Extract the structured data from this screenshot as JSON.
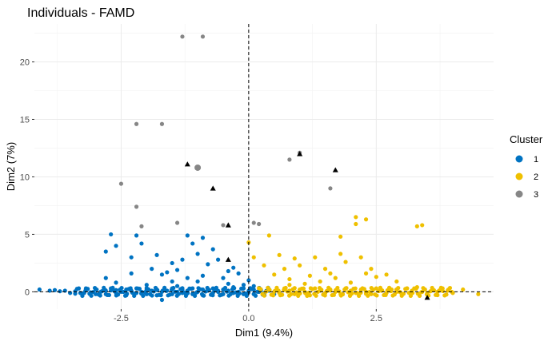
{
  "chart_data": {
    "type": "scatter",
    "title": "Individuals - FAMD",
    "xlabel": "Dim1 (9.4%)",
    "ylabel": "Dim2 (7%)",
    "xlim": [
      -4.2,
      4.8
    ],
    "ylim": [
      -1.5,
      23.3
    ],
    "x_ticks": [
      -2.5,
      0.0,
      2.5
    ],
    "x_tick_labels": [
      "-2.5",
      "0.0",
      "2.5"
    ],
    "y_ticks": [
      0,
      5,
      10,
      15,
      20
    ],
    "y_tick_labels": [
      "0",
      "5",
      "10",
      "15",
      "20"
    ],
    "grid": true,
    "reference_lines": {
      "x": 0,
      "y": 0,
      "style": "dashed"
    },
    "legend": {
      "title": "Cluster",
      "position": "right",
      "entries": [
        {
          "label": "1",
          "color": "#0073C2"
        },
        {
          "label": "2",
          "color": "#EFC000"
        },
        {
          "label": "3",
          "color": "#868686"
        }
      ]
    },
    "series": [
      {
        "name": "1",
        "color": "#0073C2",
        "points": [
          [
            -4.1,
            0.2
          ],
          [
            -3.9,
            0.1
          ],
          [
            -3.8,
            0.15
          ],
          [
            -3.7,
            0.05
          ],
          [
            -3.6,
            0.1
          ],
          [
            -3.5,
            -0.1
          ],
          [
            -3.4,
            0.05
          ],
          [
            -3.3,
            -0.1
          ],
          [
            -3.2,
            0.1
          ],
          [
            -3.1,
            -0.05
          ],
          [
            -3.0,
            0.2
          ],
          [
            -3.0,
            -0.2
          ],
          [
            -2.9,
            0.0
          ],
          [
            -2.8,
            0.1
          ],
          [
            -2.8,
            -0.2
          ],
          [
            -2.7,
            0.3
          ],
          [
            -2.6,
            -0.1
          ],
          [
            -2.6,
            0.15
          ],
          [
            -2.5,
            0.0
          ],
          [
            -2.4,
            -0.3
          ],
          [
            -2.4,
            0.2
          ],
          [
            -2.3,
            0.1
          ],
          [
            -2.2,
            -0.1
          ],
          [
            -2.2,
            0.3
          ],
          [
            -2.1,
            0.0
          ],
          [
            -2.0,
            -0.2
          ],
          [
            -2.0,
            0.2
          ],
          [
            -1.9,
            0.1
          ],
          [
            -1.8,
            -0.3
          ],
          [
            -1.8,
            0.2
          ],
          [
            -1.7,
            0.0
          ],
          [
            -1.7,
            -0.7
          ],
          [
            -1.6,
            0.1
          ],
          [
            -1.5,
            -0.2
          ],
          [
            -1.5,
            0.3
          ],
          [
            -1.4,
            0.0
          ],
          [
            -1.3,
            -0.1
          ],
          [
            -1.3,
            0.2
          ],
          [
            -1.2,
            0.1
          ],
          [
            -1.1,
            -0.2
          ],
          [
            -1.1,
            0.3
          ],
          [
            -1.0,
            0.0
          ],
          [
            -0.9,
            -0.3
          ],
          [
            -0.9,
            0.2
          ],
          [
            -0.8,
            0.1
          ],
          [
            -0.7,
            -0.1
          ],
          [
            -0.7,
            0.3
          ],
          [
            -0.6,
            0.0
          ],
          [
            -0.5,
            -0.2
          ],
          [
            -0.5,
            0.2
          ],
          [
            -0.4,
            0.1
          ],
          [
            -0.3,
            -0.1
          ],
          [
            -0.3,
            0.4
          ],
          [
            -0.2,
            0.0
          ],
          [
            -0.1,
            -0.2
          ],
          [
            -0.1,
            0.3
          ],
          [
            0.0,
            0.1
          ],
          [
            0.1,
            -0.2
          ],
          [
            0.1,
            0.2
          ],
          [
            0.2,
            0.0
          ],
          [
            0.3,
            -0.1
          ],
          [
            0.4,
            0.1
          ],
          [
            0.5,
            -0.2
          ],
          [
            -2.8,
            3.5
          ],
          [
            -2.7,
            5.0
          ],
          [
            -2.6,
            4.0
          ],
          [
            -2.3,
            3.0
          ],
          [
            -2.2,
            4.9
          ],
          [
            -2.1,
            4.2
          ],
          [
            -1.9,
            2.0
          ],
          [
            -1.8,
            3.2
          ],
          [
            -1.7,
            1.5
          ],
          [
            -1.6,
            1.7
          ],
          [
            -1.5,
            2.5
          ],
          [
            -1.4,
            1.9
          ],
          [
            -1.3,
            2.8
          ],
          [
            -1.2,
            4.9
          ],
          [
            -1.1,
            4.2
          ],
          [
            -1.0,
            3.3
          ],
          [
            -0.9,
            4.7
          ],
          [
            -0.8,
            2.4
          ],
          [
            -0.7,
            3.7
          ],
          [
            -0.6,
            2.8
          ],
          [
            -0.5,
            1.2
          ],
          [
            -0.4,
            1.8
          ],
          [
            -0.3,
            2.1
          ],
          [
            -0.2,
            1.6
          ],
          [
            -0.1,
            0.6
          ],
          [
            0.0,
            1.0
          ],
          [
            0.1,
            0.5
          ],
          [
            -1.5,
            0.9
          ],
          [
            -1.2,
            1.2
          ],
          [
            -1.0,
            0.9
          ],
          [
            -2.3,
            1.6
          ],
          [
            -2.6,
            0.8
          ],
          [
            -2.0,
            0.6
          ],
          [
            -0.9,
            1.4
          ],
          [
            -1.4,
            0.5
          ],
          [
            -0.4,
            0.7
          ],
          [
            -2.8,
            1.2
          ]
        ]
      },
      {
        "name": "2",
        "color": "#EFC000",
        "points": [
          [
            0.2,
            0.1
          ],
          [
            0.3,
            -0.2
          ],
          [
            0.4,
            0.2
          ],
          [
            0.5,
            0.0
          ],
          [
            0.6,
            -0.1
          ],
          [
            0.7,
            0.3
          ],
          [
            0.8,
            0.1
          ],
          [
            0.9,
            -0.2
          ],
          [
            1.0,
            0.2
          ],
          [
            1.1,
            0.0
          ],
          [
            1.2,
            -0.3
          ],
          [
            1.3,
            0.3
          ],
          [
            1.4,
            0.1
          ],
          [
            1.5,
            -0.1
          ],
          [
            1.6,
            0.2
          ],
          [
            1.7,
            0.0
          ],
          [
            1.8,
            -0.2
          ],
          [
            1.9,
            0.3
          ],
          [
            2.0,
            0.1
          ],
          [
            2.1,
            -0.1
          ],
          [
            2.2,
            0.2
          ],
          [
            2.3,
            0.0
          ],
          [
            2.4,
            -0.2
          ],
          [
            2.5,
            0.3
          ],
          [
            2.6,
            0.1
          ],
          [
            2.7,
            -0.1
          ],
          [
            2.8,
            0.2
          ],
          [
            2.9,
            0.0
          ],
          [
            3.0,
            -0.2
          ],
          [
            3.1,
            0.3
          ],
          [
            3.2,
            0.1
          ],
          [
            3.3,
            0.4
          ],
          [
            3.4,
            0.0
          ],
          [
            3.5,
            -0.1
          ],
          [
            3.6,
            0.2
          ],
          [
            3.7,
            0.0
          ],
          [
            3.8,
            0.3
          ],
          [
            3.9,
            0.1
          ],
          [
            4.0,
            -0.1
          ],
          [
            4.2,
            0.2
          ],
          [
            4.5,
            -0.2
          ],
          [
            0.0,
            4.3
          ],
          [
            0.1,
            3.0
          ],
          [
            0.3,
            2.3
          ],
          [
            0.4,
            4.9
          ],
          [
            0.5,
            1.5
          ],
          [
            0.6,
            3.2
          ],
          [
            0.7,
            2.0
          ],
          [
            0.8,
            1.1
          ],
          [
            0.9,
            2.9
          ],
          [
            1.0,
            2.3
          ],
          [
            1.2,
            1.4
          ],
          [
            1.3,
            3.0
          ],
          [
            1.4,
            0.9
          ],
          [
            1.5,
            2.0
          ],
          [
            1.6,
            1.6
          ],
          [
            1.7,
            1.2
          ],
          [
            1.8,
            3.3
          ],
          [
            2.0,
            0.8
          ],
          [
            2.1,
            5.9
          ],
          [
            2.2,
            3.0
          ],
          [
            2.3,
            1.6
          ],
          [
            2.4,
            2.0
          ],
          [
            2.5,
            1.3
          ],
          [
            2.7,
            1.5
          ],
          [
            2.9,
            0.9
          ],
          [
            3.3,
            5.7
          ],
          [
            3.4,
            5.8
          ],
          [
            2.1,
            6.5
          ],
          [
            2.3,
            6.3
          ],
          [
            1.8,
            4.8
          ],
          [
            1.9,
            2.6
          ],
          [
            0.8,
            0.6
          ],
          [
            1.1,
            0.7
          ]
        ]
      },
      {
        "name": "3",
        "color": "#868686",
        "points": [
          [
            -1.3,
            22.2
          ],
          [
            -0.9,
            22.2
          ],
          [
            -2.2,
            14.6
          ],
          [
            -1.7,
            14.6
          ],
          [
            -1.0,
            10.8
          ],
          [
            -2.5,
            9.4
          ],
          [
            -2.2,
            7.4
          ],
          [
            -2.1,
            5.7
          ],
          [
            -1.4,
            6.0
          ],
          [
            -0.5,
            5.8
          ],
          [
            0.1,
            6.0
          ],
          [
            0.8,
            11.5
          ],
          [
            1.0,
            12.1
          ],
          [
            1.6,
            9.0
          ],
          [
            0.2,
            5.9
          ]
        ]
      }
    ],
    "centroids": {
      "marker": "triangle",
      "color": "#000000",
      "points": [
        [
          -1.2,
          11.1
        ],
        [
          -0.7,
          9.0
        ],
        [
          -0.4,
          5.8
        ],
        [
          -0.4,
          2.8
        ],
        [
          1.0,
          12.0
        ],
        [
          1.7,
          10.6
        ],
        [
          3.5,
          -0.5
        ]
      ]
    }
  }
}
